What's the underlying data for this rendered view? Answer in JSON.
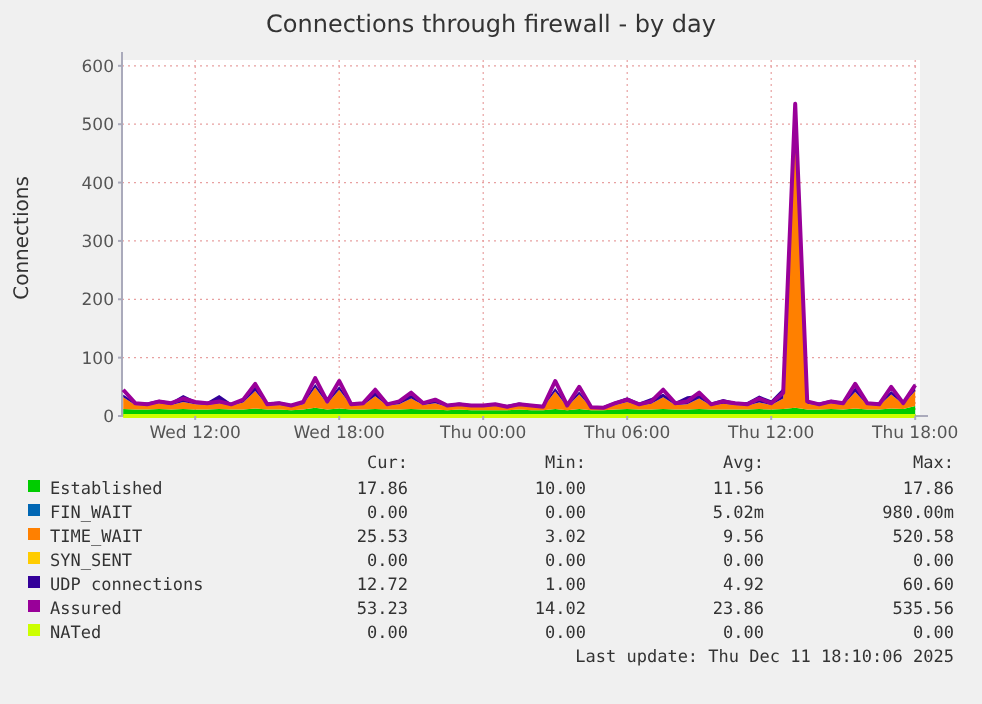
{
  "chart_data": {
    "type": "area",
    "title": "Connections through firewall - by day",
    "ylabel": "Connections",
    "stacked": true,
    "legend": "bottom",
    "grid": true,
    "xlim": [
      "2025-12-10T08:57",
      "2025-12-11T18:12"
    ],
    "xticks": [
      {
        "value": "2025-12-10T12:00",
        "label": "Wed 12:00"
      },
      {
        "value": "2025-12-10T18:00",
        "label": "Wed 18:00"
      },
      {
        "value": "2025-12-11T00:00",
        "label": "Thu 00:00"
      },
      {
        "value": "2025-12-11T06:00",
        "label": "Thu 06:00"
      },
      {
        "value": "2025-12-11T12:00",
        "label": "Thu 12:00"
      },
      {
        "value": "2025-12-11T18:00",
        "label": "Thu 18:00"
      }
    ],
    "ylim": [
      0,
      610
    ],
    "yticks": [
      0,
      100,
      200,
      300,
      400,
      500,
      600
    ],
    "x": [
      "2025-12-10T09:00",
      "2025-12-10T09:30",
      "2025-12-10T10:00",
      "2025-12-10T10:30",
      "2025-12-10T11:00",
      "2025-12-10T11:30",
      "2025-12-10T12:00",
      "2025-12-10T12:30",
      "2025-12-10T13:00",
      "2025-12-10T13:30",
      "2025-12-10T14:00",
      "2025-12-10T14:30",
      "2025-12-10T15:00",
      "2025-12-10T15:30",
      "2025-12-10T16:00",
      "2025-12-10T16:30",
      "2025-12-10T17:00",
      "2025-12-10T17:30",
      "2025-12-10T18:00",
      "2025-12-10T18:30",
      "2025-12-10T19:00",
      "2025-12-10T19:30",
      "2025-12-10T20:00",
      "2025-12-10T20:30",
      "2025-12-10T21:00",
      "2025-12-10T21:30",
      "2025-12-10T22:00",
      "2025-12-10T22:30",
      "2025-12-10T23:00",
      "2025-12-10T23:30",
      "2025-12-11T00:00",
      "2025-12-11T00:30",
      "2025-12-11T01:00",
      "2025-12-11T01:30",
      "2025-12-11T02:00",
      "2025-12-11T02:30",
      "2025-12-11T03:00",
      "2025-12-11T03:30",
      "2025-12-11T04:00",
      "2025-12-11T04:30",
      "2025-12-11T05:00",
      "2025-12-11T05:30",
      "2025-12-11T06:00",
      "2025-12-11T06:30",
      "2025-12-11T07:00",
      "2025-12-11T07:30",
      "2025-12-11T08:00",
      "2025-12-11T08:30",
      "2025-12-11T09:00",
      "2025-12-11T09:30",
      "2025-12-11T10:00",
      "2025-12-11T10:30",
      "2025-12-11T11:00",
      "2025-12-11T11:30",
      "2025-12-11T12:00",
      "2025-12-11T12:30",
      "2025-12-11T13:00",
      "2025-12-11T13:30",
      "2025-12-11T14:00",
      "2025-12-11T14:30",
      "2025-12-11T15:00",
      "2025-12-11T15:30",
      "2025-12-11T16:00",
      "2025-12-11T16:30",
      "2025-12-11T17:00",
      "2025-12-11T17:30",
      "2025-12-11T18:00"
    ],
    "series": [
      {
        "name": "Established",
        "color": "#00cc00",
        "values": [
          12,
          11,
          11,
          12,
          11,
          12,
          11,
          11,
          12,
          11,
          11,
          13,
          11,
          11,
          10,
          11,
          14,
          11,
          13,
          11,
          11,
          12,
          11,
          11,
          12,
          11,
          11,
          10,
          11,
          10,
          10,
          10,
          10,
          11,
          10,
          10,
          12,
          10,
          12,
          10,
          10,
          11,
          12,
          11,
          11,
          12,
          11,
          11,
          12,
          11,
          11,
          11,
          11,
          12,
          11,
          12,
          14,
          11,
          11,
          12,
          11,
          13,
          11,
          11,
          13,
          12,
          17
        ]
      },
      {
        "name": "FIN_WAIT",
        "type": "line",
        "color": "#0066b3",
        "values": [
          null,
          null,
          null,
          null,
          null,
          null,
          null,
          null,
          null,
          null,
          null,
          null,
          null,
          null,
          null,
          null,
          null,
          null,
          null,
          null,
          null,
          null,
          null,
          null,
          null,
          null,
          null,
          null,
          null,
          null,
          null,
          null,
          null,
          null,
          null,
          null,
          null,
          null,
          null,
          null,
          null,
          null,
          null,
          null,
          null,
          null,
          null,
          null,
          null,
          null,
          null,
          null,
          null,
          null,
          null,
          null,
          null,
          null,
          null,
          null,
          null,
          null,
          null,
          null,
          null,
          null,
          null
        ]
      },
      {
        "name": "TIME_WAIT",
        "color": "#ff8000",
        "values": [
          20,
          8,
          7,
          10,
          8,
          12,
          9,
          8,
          10,
          7,
          12,
          30,
          7,
          8,
          6,
          9,
          35,
          10,
          32,
          7,
          8,
          22,
          7,
          9,
          18,
          8,
          11,
          6,
          7,
          6,
          6,
          7,
          5,
          7,
          6,
          5,
          30,
          6,
          25,
          4,
          4,
          8,
          12,
          7,
          10,
          20,
          8,
          9,
          18,
          7,
          10,
          8,
          7,
          11,
          8,
          18,
          520,
          10,
          7,
          10,
          8,
          28,
          8,
          7,
          24,
          8,
          26
        ]
      },
      {
        "name": "SYN_SENT",
        "type": "line",
        "color": "#ffcc00",
        "values": [
          null,
          null,
          null,
          null,
          null,
          null,
          null,
          null,
          null,
          null,
          null,
          null,
          null,
          null,
          null,
          null,
          null,
          null,
          null,
          null,
          null,
          null,
          null,
          null,
          null,
          null,
          null,
          null,
          null,
          null,
          null,
          null,
          null,
          null,
          null,
          null,
          null,
          null,
          null,
          null,
          null,
          null,
          null,
          null,
          null,
          null,
          null,
          null,
          null,
          null,
          null,
          null,
          null,
          null,
          null,
          null,
          null,
          null,
          null,
          null,
          null,
          null,
          null,
          null,
          null,
          null,
          null
        ]
      },
      {
        "name": "UDP connections",
        "color": "#330099",
        "values": [
          5,
          4,
          5,
          6,
          5,
          12,
          6,
          5,
          14,
          4,
          6,
          8,
          5,
          6,
          4,
          5,
          6,
          5,
          6,
          4,
          5,
          8,
          4,
          6,
          7,
          5,
          6,
          4,
          5,
          4,
          4,
          5,
          4,
          5,
          4,
          4,
          6,
          4,
          5,
          3,
          3,
          6,
          8,
          5,
          10,
          6,
          5,
          14,
          6,
          5,
          8,
          5,
          6,
          12,
          8,
          18,
          6,
          5,
          5,
          6,
          5,
          8,
          5,
          5,
          6,
          5,
          13
        ]
      },
      {
        "name": "Assured",
        "type": "line",
        "color": "#990099",
        "values": [
          45,
          22,
          20,
          25,
          22,
          30,
          24,
          22,
          25,
          20,
          28,
          55,
          20,
          22,
          18,
          24,
          65,
          25,
          60,
          20,
          22,
          45,
          20,
          25,
          40,
          22,
          28,
          18,
          20,
          18,
          18,
          20,
          16,
          20,
          18,
          16,
          60,
          18,
          50,
          15,
          14,
          22,
          28,
          20,
          25,
          45,
          22,
          25,
          40,
          20,
          25,
          22,
          20,
          30,
          22,
          40,
          535,
          25,
          20,
          25,
          22,
          55,
          22,
          20,
          50,
          22,
          53
        ]
      },
      {
        "name": "NATed",
        "type": "line",
        "color": "#ccff00",
        "values": [
          0,
          0,
          0,
          0,
          0,
          0,
          0,
          0,
          0,
          0,
          0,
          0,
          0,
          0,
          0,
          0,
          0,
          0,
          0,
          0,
          0,
          0,
          0,
          0,
          0,
          0,
          0,
          0,
          0,
          0,
          0,
          0,
          0,
          0,
          0,
          0,
          0,
          0,
          0,
          0,
          0,
          0,
          0,
          0,
          0,
          0,
          0,
          0,
          0,
          0,
          0,
          0,
          0,
          0,
          0,
          0,
          0,
          0,
          0,
          0,
          0,
          0,
          0,
          0,
          0,
          0,
          0
        ]
      }
    ],
    "annotations": [
      "Cur:",
      "Min:",
      "Avg:",
      "Max:",
      "17.86",
      "10.00",
      "11.56",
      "17.86",
      "0.00",
      "0.00",
      "5.02m",
      "980.00m",
      "25.53",
      "3.02",
      "9.56",
      "520.58",
      "0.00",
      "0.00",
      "0.00",
      "0.00",
      "12.72",
      "1.00",
      "4.92",
      "60.60",
      "53.23",
      "14.02",
      "23.86",
      "535.56",
      "0.00",
      "0.00",
      "0.00",
      "0.00",
      "Last update: Thu Dec 11 18:10:06 2025"
    ]
  }
}
